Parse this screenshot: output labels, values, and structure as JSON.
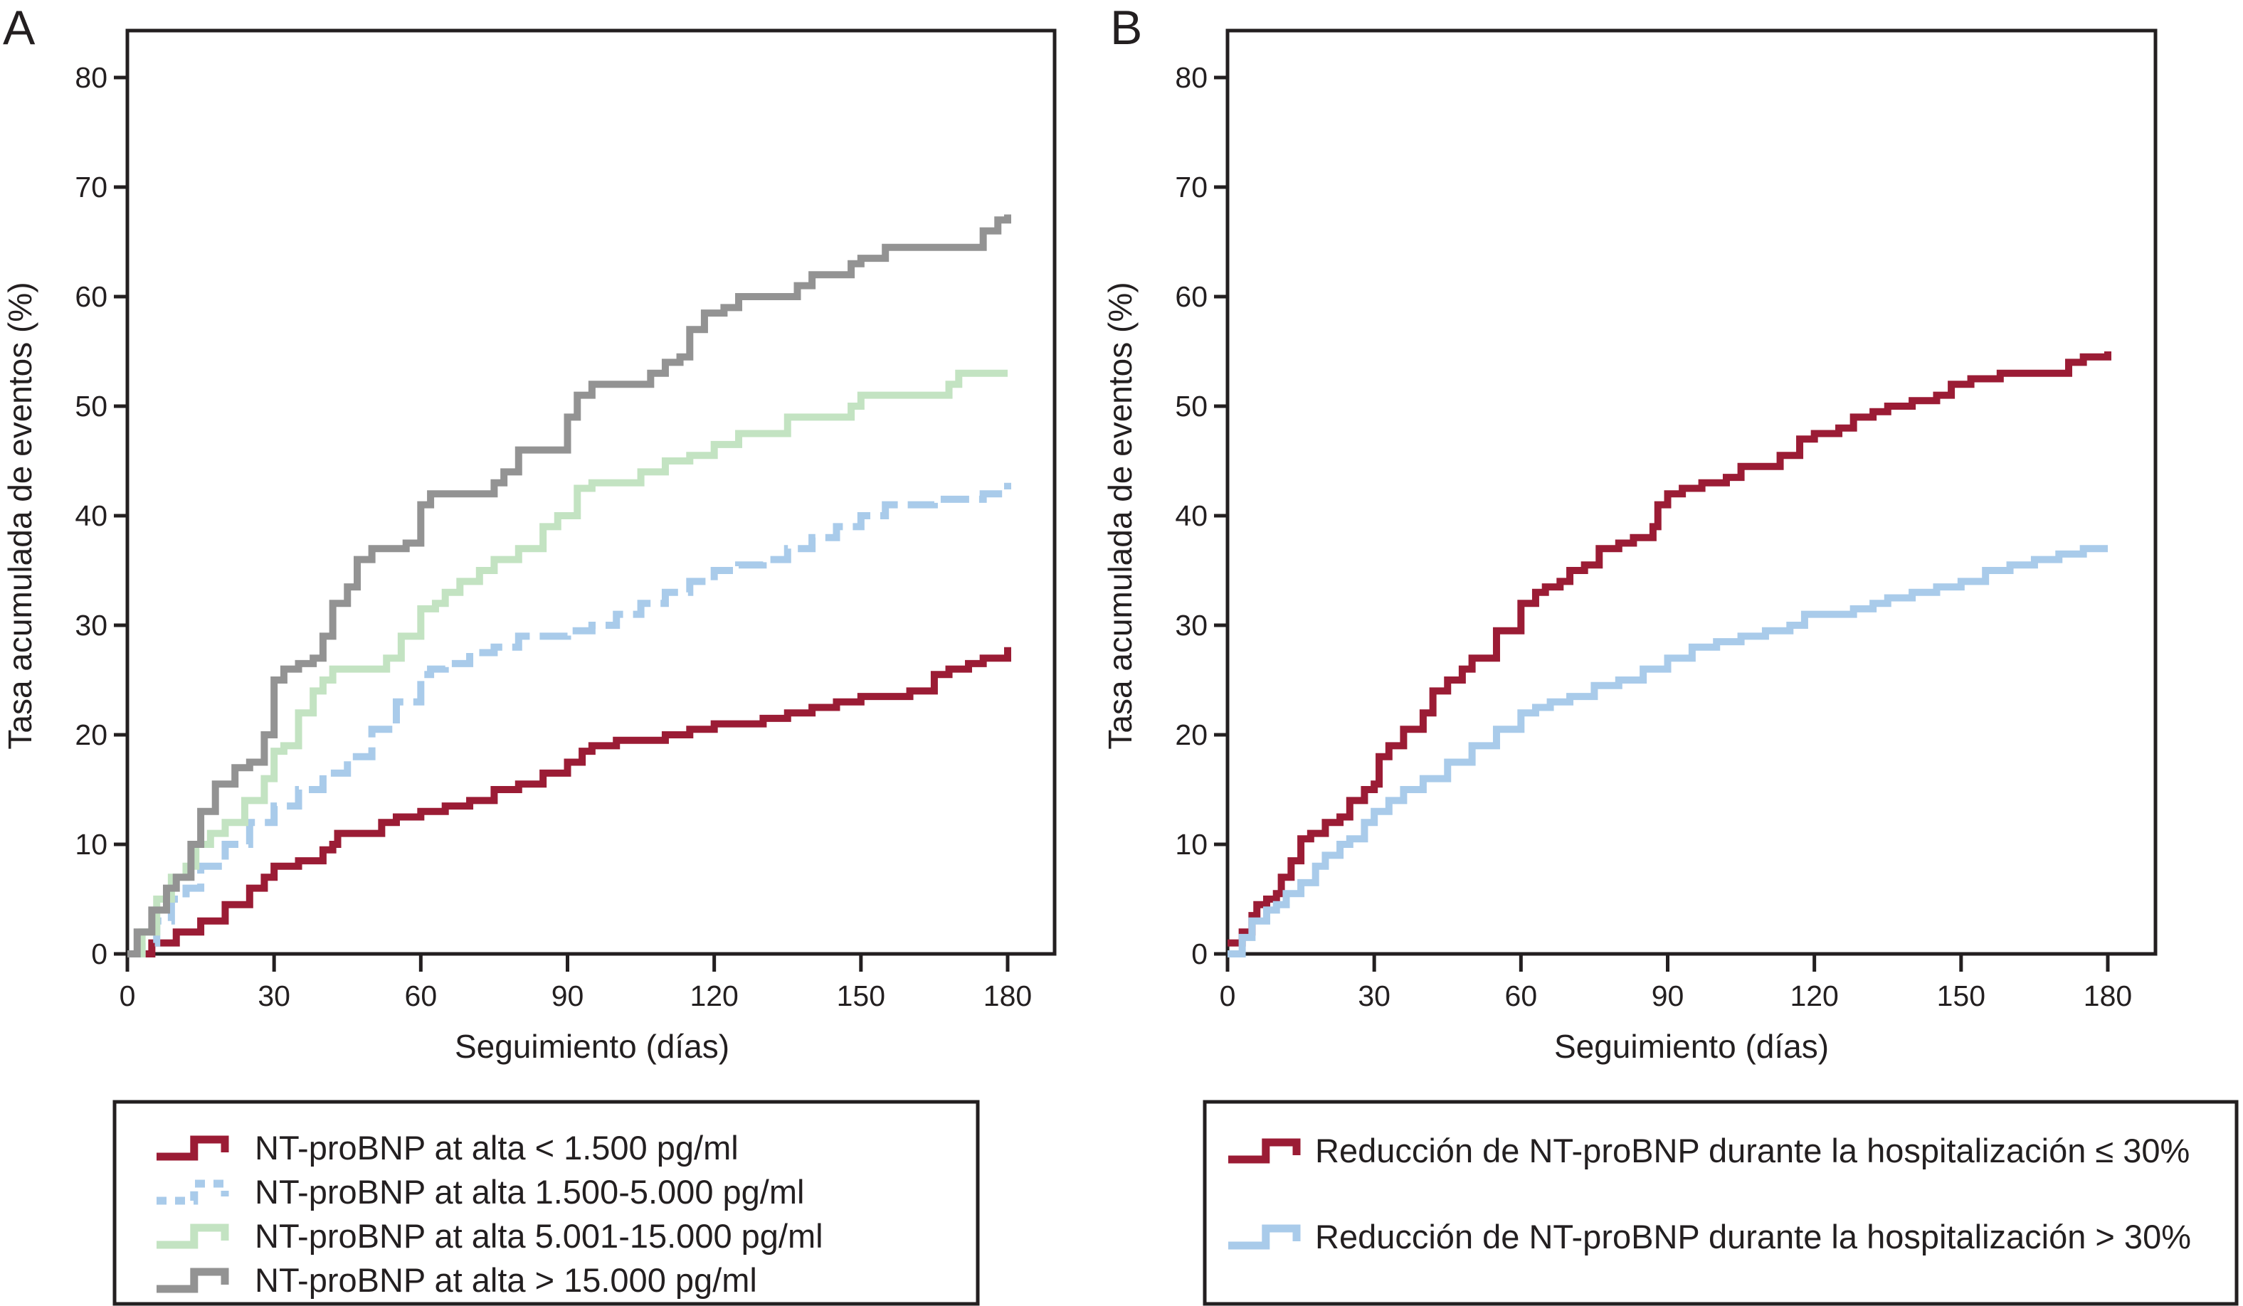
{
  "chart_data": [
    {
      "type": "line",
      "panel_label": "A",
      "title": "",
      "xlabel": "Seguimiento (días)",
      "ylabel": "Tasa acumulada de eventos (%)",
      "xlim": [
        0,
        180
      ],
      "ylim": [
        0,
        80
      ],
      "xticks": [
        "0",
        "30",
        "60",
        "90",
        "120",
        "150",
        "180"
      ],
      "yticks": [
        "0",
        "10",
        "20",
        "30",
        "40",
        "50",
        "60",
        "70",
        "80"
      ],
      "grid": false,
      "legend_position": "bottom",
      "series": [
        {
          "name": "NT-proBNP at alta < 1.500 pg/ml",
          "color": "#9b1c35",
          "style": "solid",
          "x": [
            0,
            5,
            10,
            15,
            20,
            25,
            28,
            30,
            35,
            40,
            42,
            43,
            50,
            52,
            55,
            60,
            65,
            70,
            75,
            80,
            85,
            90,
            93,
            95,
            100,
            110,
            115,
            120,
            130,
            135,
            140,
            145,
            150,
            160,
            165,
            168,
            172,
            175,
            180
          ],
          "y": [
            0,
            1,
            2,
            3,
            4.5,
            6,
            7,
            8,
            8.5,
            9.5,
            10,
            11,
            11,
            12,
            12.5,
            13,
            13.5,
            14,
            15,
            15.5,
            16.5,
            17.5,
            18.5,
            19,
            19.5,
            20,
            20.5,
            21,
            21.5,
            22,
            22.5,
            23,
            23.5,
            24,
            25.5,
            26,
            26.5,
            27,
            28
          ]
        },
        {
          "name": "NT-proBNP at alta 1.500-5.000 pg/ml",
          "color": "#a9cbea",
          "style": "dashed",
          "x": [
            0,
            3,
            6,
            9,
            12,
            15,
            20,
            25,
            30,
            35,
            40,
            45,
            50,
            55,
            60,
            62,
            65,
            70,
            75,
            80,
            85,
            90,
            95,
            100,
            105,
            110,
            115,
            120,
            125,
            130,
            135,
            140,
            145,
            150,
            155,
            165,
            175,
            180
          ],
          "y": [
            0,
            1,
            3,
            5,
            6,
            8,
            10,
            12,
            13.5,
            15,
            16.5,
            18,
            20.5,
            23,
            25.5,
            26,
            26.5,
            27.5,
            28,
            29,
            29,
            29.5,
            30,
            31,
            32,
            33,
            34,
            35,
            35.5,
            36,
            37,
            38,
            39,
            40,
            41,
            41.5,
            42,
            43
          ]
        },
        {
          "name": "NT-proBNP at alta 5.001-15.000 pg/ml",
          "color": "#c3e3c2",
          "style": "solid",
          "x": [
            0,
            3,
            6,
            9,
            12,
            14,
            17,
            20,
            24,
            28,
            30,
            32,
            35,
            38,
            40,
            42,
            50,
            53,
            56,
            60,
            63,
            65,
            68,
            72,
            75,
            80,
            85,
            88,
            92,
            95,
            100,
            105,
            110,
            115,
            120,
            125,
            130,
            135,
            140,
            148,
            150,
            163,
            168,
            170,
            180
          ],
          "y": [
            0,
            2,
            5,
            7,
            8,
            10,
            11,
            12,
            14,
            16,
            18.5,
            19,
            22,
            24,
            25,
            26,
            26,
            27,
            29,
            31.5,
            32,
            33,
            34,
            35,
            36,
            37,
            39,
            40,
            42.5,
            43,
            43,
            44,
            45,
            45.5,
            46.5,
            47.5,
            47.5,
            49,
            49,
            50,
            51,
            51,
            52,
            53,
            53
          ]
        },
        {
          "name": "NT-proBNP at alta > 15.000 pg/ml",
          "color": "#939393",
          "style": "solid",
          "x": [
            0,
            2,
            5,
            8,
            10,
            13,
            15,
            18,
            22,
            25,
            28,
            30,
            32,
            35,
            38,
            40,
            42,
            45,
            47,
            50,
            55,
            57,
            60,
            62,
            70,
            75,
            77,
            80,
            88,
            90,
            92,
            95,
            105,
            107,
            110,
            113,
            115,
            118,
            122,
            125,
            135,
            137,
            140,
            145,
            148,
            150,
            155,
            172,
            175,
            178,
            180
          ],
          "y": [
            0,
            2,
            4,
            6,
            7,
            10,
            13,
            15.5,
            17,
            17.5,
            20,
            25,
            26,
            26.5,
            27,
            29,
            32,
            33.5,
            36,
            37,
            37,
            37.5,
            41,
            42,
            42,
            43,
            44,
            46,
            46,
            49,
            51,
            52,
            52,
            53,
            54,
            54.5,
            57,
            58.5,
            59,
            60,
            60,
            61,
            62,
            62,
            63,
            63.5,
            64.5,
            64.5,
            66,
            67,
            67.5
          ]
        }
      ]
    },
    {
      "type": "line",
      "panel_label": "B",
      "title": "",
      "xlabel": "Seguimiento (días)",
      "ylabel": "Tasa acumulada de eventos (%)",
      "xlim": [
        0,
        180
      ],
      "ylim": [
        0,
        80
      ],
      "xticks": [
        "0",
        "30",
        "60",
        "90",
        "120",
        "150",
        "180"
      ],
      "yticks": [
        "0",
        "10",
        "20",
        "30",
        "40",
        "50",
        "60",
        "70",
        "80"
      ],
      "grid": false,
      "legend_position": "bottom",
      "series": [
        {
          "name": "Reducción de NT-proBNP durante la hospitalización ≤ 30%",
          "color": "#9b1c35",
          "style": "solid",
          "x": [
            0,
            3,
            5,
            6,
            8,
            10,
            11,
            13,
            15,
            17,
            20,
            23,
            25,
            28,
            30,
            31,
            33,
            36,
            40,
            42,
            45,
            48,
            50,
            55,
            60,
            63,
            65,
            68,
            70,
            73,
            76,
            80,
            83,
            87,
            88,
            90,
            93,
            97,
            102,
            105,
            108,
            113,
            117,
            120,
            125,
            128,
            132,
            135,
            140,
            145,
            148,
            152,
            158,
            170,
            172,
            175,
            180
          ],
          "y": [
            1,
            2,
            3.5,
            4.5,
            5,
            5.5,
            7,
            8.5,
            10.5,
            11,
            12,
            12.5,
            14,
            15,
            15.5,
            18,
            19,
            20.5,
            22,
            24,
            25,
            26,
            27,
            29.5,
            32,
            33,
            33.5,
            34,
            35,
            35.5,
            37,
            37.5,
            38,
            39,
            41,
            42,
            42.5,
            43,
            43.5,
            44.5,
            44.5,
            45.5,
            47,
            47.5,
            48,
            49,
            49.5,
            50,
            50.5,
            51,
            52,
            52.5,
            53,
            53,
            54,
            54.5,
            55
          ]
        },
        {
          "name": "Reducción de NT-proBNP durante la hospitalización > 30%",
          "color": "#a9cbea",
          "style": "solid",
          "x": [
            0,
            3,
            5,
            8,
            10,
            12,
            15,
            18,
            20,
            23,
            25,
            28,
            30,
            33,
            36,
            40,
            45,
            50,
            55,
            60,
            63,
            66,
            70,
            75,
            80,
            85,
            90,
            95,
            100,
            105,
            110,
            115,
            118,
            123,
            128,
            132,
            135,
            140,
            145,
            150,
            155,
            160,
            165,
            170,
            175,
            180
          ],
          "y": [
            0,
            1.5,
            3,
            4,
            4.5,
            5.5,
            6.5,
            8,
            9,
            10,
            10.5,
            12,
            13,
            14,
            15,
            16,
            17.5,
            19,
            20.5,
            22,
            22.5,
            23,
            23.5,
            24.5,
            25,
            26,
            27,
            28,
            28.5,
            29,
            29.5,
            30,
            31,
            31,
            31.5,
            32,
            32.5,
            33,
            33.5,
            34,
            35,
            35.5,
            36,
            36.5,
            37,
            37
          ]
        }
      ]
    }
  ]
}
